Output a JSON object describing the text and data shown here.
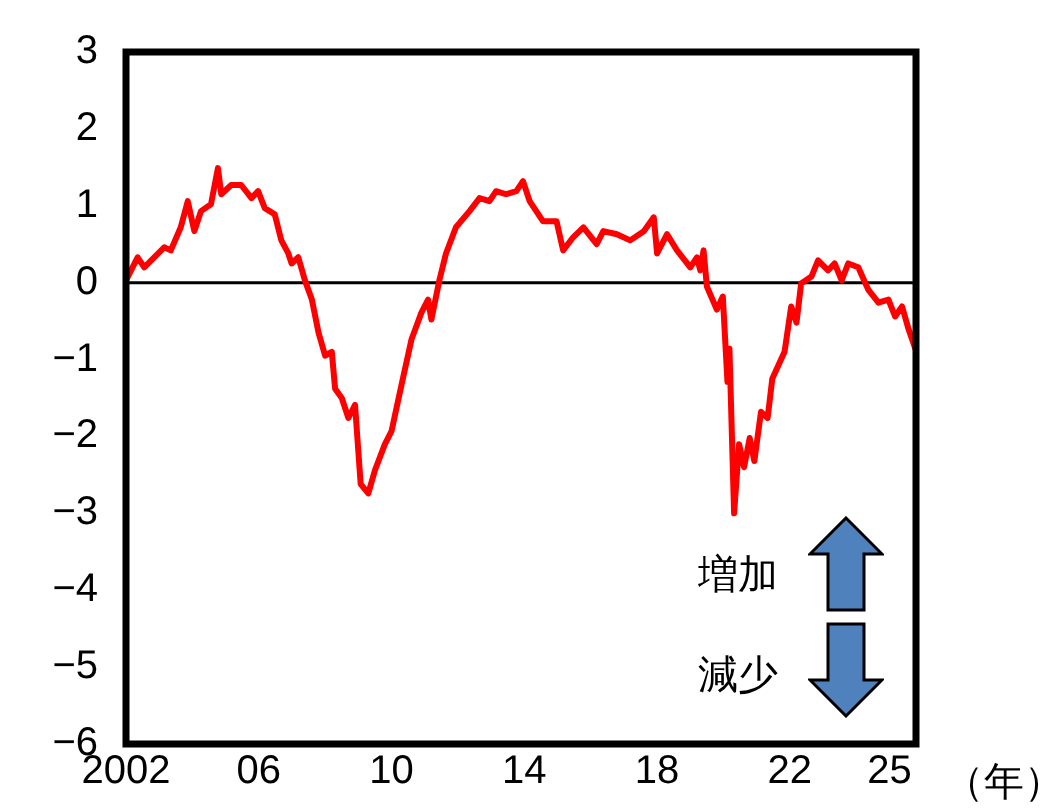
{
  "chart_data": {
    "type": "line",
    "xlabel": "（年）",
    "x": [
      2002.0,
      2002.35,
      2002.55,
      2002.85,
      2003.15,
      2003.35,
      2003.65,
      2003.86,
      2004.06,
      2004.26,
      2004.56,
      2004.77,
      2004.87,
      2005.17,
      2005.47,
      2005.78,
      2005.98,
      2006.18,
      2006.48,
      2006.68,
      2006.89,
      2006.99,
      2007.19,
      2007.39,
      2007.6,
      2007.8,
      2008.0,
      2008.2,
      2008.3,
      2008.5,
      2008.7,
      2008.9,
      2009.07,
      2009.3,
      2009.5,
      2009.8,
      2010.0,
      2010.3,
      2010.6,
      2010.9,
      2011.1,
      2011.2,
      2011.44,
      2011.64,
      2011.94,
      2012.35,
      2012.65,
      2012.95,
      2013.15,
      2013.45,
      2013.76,
      2013.96,
      2014.16,
      2014.56,
      2014.97,
      2015.17,
      2015.47,
      2015.78,
      2016.18,
      2016.38,
      2016.79,
      2017.19,
      2017.6,
      2017.9,
      2018.0,
      2018.3,
      2018.6,
      2019.0,
      2019.2,
      2019.3,
      2019.4,
      2019.5,
      2019.8,
      2019.98,
      2020.12,
      2020.18,
      2020.32,
      2020.47,
      2020.62,
      2020.79,
      2020.93,
      2021.13,
      2021.33,
      2021.47,
      2021.84,
      2022.04,
      2022.2,
      2022.34,
      2022.65,
      2022.85,
      2023.15,
      2023.35,
      2023.56,
      2023.76,
      2024.06,
      2024.36,
      2024.67,
      2024.97,
      2025.17,
      2025.38,
      2025.58,
      2025.78
    ],
    "series": [
      {
        "color": "#ff0000",
        "values": [
          0.03,
          0.33,
          0.2,
          0.33,
          0.46,
          0.42,
          0.72,
          1.06,
          0.67,
          0.93,
          1.02,
          1.49,
          1.15,
          1.27,
          1.27,
          1.1,
          1.19,
          0.97,
          0.89,
          0.55,
          0.38,
          0.25,
          0.33,
          0.03,
          -0.22,
          -0.65,
          -0.95,
          -0.9,
          -1.38,
          -1.5,
          -1.76,
          -1.59,
          -2.62,
          -2.74,
          -2.44,
          -2.1,
          -1.93,
          -1.33,
          -0.74,
          -0.39,
          -0.22,
          -0.48,
          0.03,
          0.38,
          0.72,
          0.93,
          1.1,
          1.06,
          1.19,
          1.15,
          1.19,
          1.32,
          1.06,
          0.8,
          0.8,
          0.42,
          0.59,
          0.72,
          0.5,
          0.67,
          0.63,
          0.55,
          0.67,
          0.85,
          0.38,
          0.63,
          0.42,
          0.2,
          0.33,
          0.16,
          0.42,
          -0.05,
          -0.35,
          -0.18,
          -1.29,
          -0.86,
          -3.0,
          -2.1,
          -2.4,
          -2.02,
          -2.32,
          -1.68,
          -1.76,
          -1.25,
          -0.9,
          -0.31,
          -0.52,
          -0.01,
          0.08,
          0.29,
          0.16,
          0.25,
          0.03,
          0.25,
          0.2,
          -0.09,
          -0.26,
          -0.22,
          -0.44,
          -0.31,
          -0.61,
          -0.86
        ]
      }
    ],
    "xlim": [
      2002,
      2025.8
    ],
    "xticks": [
      2002,
      {
        "value": 2006,
        "label": "06"
      },
      {
        "value": 2010,
        "label": "10"
      },
      {
        "value": 2014,
        "label": "14"
      },
      {
        "value": 2018,
        "label": "18"
      },
      {
        "value": 2022,
        "label": "22"
      },
      {
        "value": 2025,
        "label": "25"
      }
    ],
    "ylim": [
      -6,
      3
    ],
    "yticks": [
      -6,
      -5,
      -4,
      -3,
      -2,
      -1,
      0,
      1,
      2,
      3
    ],
    "ref_lines": [
      {
        "axis": "y",
        "value": 0,
        "color": "#000000"
      }
    ],
    "annotations": [
      "増加",
      "減少"
    ],
    "marker": "none",
    "line_style": "solid",
    "grid": false,
    "legend": false
  }
}
